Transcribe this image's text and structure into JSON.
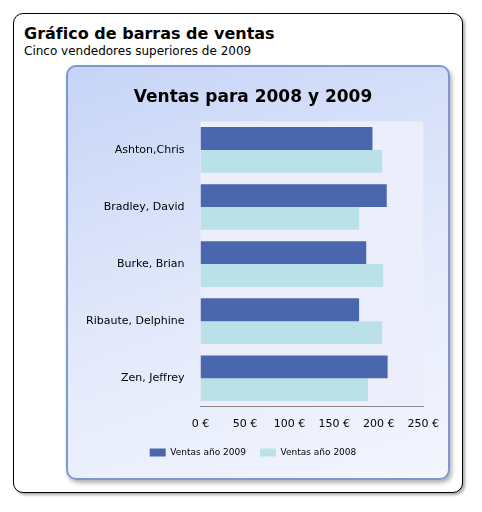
{
  "header": {
    "title": "Gráfico de barras de ventas",
    "subtitle": "Cinco vendedores superiores de 2009"
  },
  "chart_data": {
    "type": "bar",
    "title": "Ventas para 2008 y 2009",
    "orientation": "horizontal",
    "categories": [
      "Ashton,Chris",
      "Bradley, David",
      "Burke, Brian",
      "Ribaute, Delphine",
      "Zen, Jeffrey"
    ],
    "series": [
      {
        "name": "Ventas año 2009",
        "color": "#4a66ac",
        "values": [
          193,
          209,
          186,
          178,
          210
        ]
      },
      {
        "name": "Ventas año 2008",
        "color": "#b9e1e7",
        "values": [
          204,
          178,
          205,
          204,
          188
        ]
      }
    ],
    "xlim": [
      0,
      250
    ],
    "xticks": [
      {
        "value": 0,
        "label": "0 €"
      },
      {
        "value": 50,
        "label": "50 €"
      },
      {
        "value": 100,
        "label": "100 €"
      },
      {
        "value": 150,
        "label": "150 €"
      },
      {
        "value": 200,
        "label": "200 €"
      },
      {
        "value": 250,
        "label": "250 €"
      }
    ],
    "grid": false,
    "legend": "bottom"
  }
}
